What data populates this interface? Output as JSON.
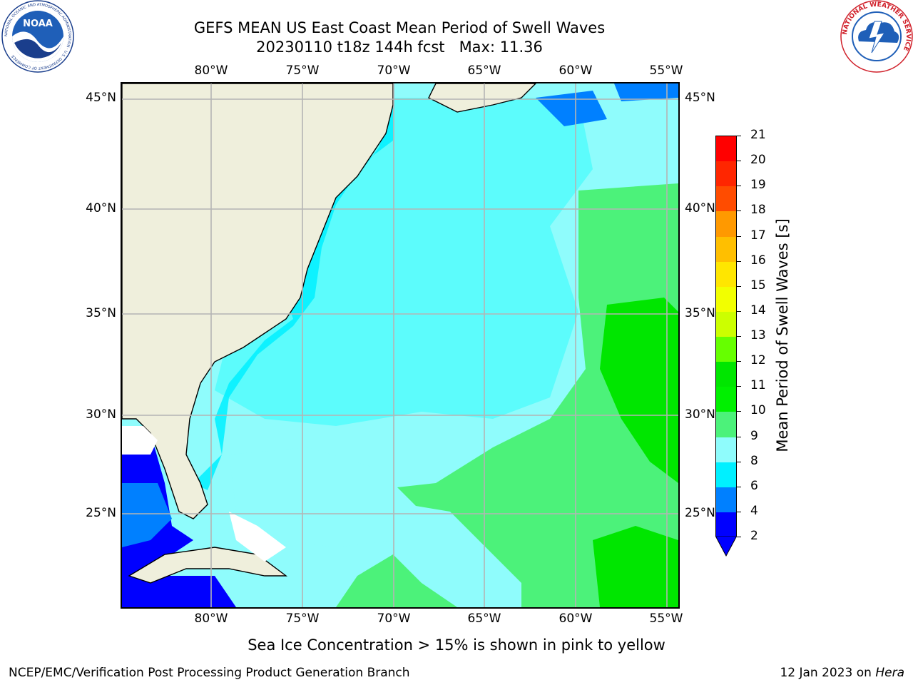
{
  "title": {
    "line1": "GEFS MEAN US East Coast Mean Period of Swell Waves",
    "line2": "20230110 t18z 144h fcst   Max: 11.36"
  },
  "map": {
    "lon_labels": [
      "80°W",
      "75°W",
      "70°W",
      "65°W",
      "60°W",
      "55°W"
    ],
    "lat_labels": [
      "45°N",
      "40°N",
      "35°N",
      "30°N",
      "25°N"
    ],
    "colors": {
      "land": "#efefdc",
      "coast": "#000000",
      "grid": "#b4b4b4",
      "missing": "#ffffff"
    }
  },
  "colorbar": {
    "label": "Mean Period of Swell Waves [s]",
    "ticks": [
      "21",
      "20",
      "19",
      "18",
      "17",
      "16",
      "15",
      "14",
      "13",
      "12",
      "11",
      "10",
      "9",
      "8",
      "6",
      "4",
      "2"
    ],
    "colors": [
      "#ff0000",
      "#ff2600",
      "#ff4c00",
      "#ff7200",
      "#ff9900",
      "#ffbf00",
      "#ffe600",
      "#f2ff00",
      "#ccff00",
      "#a6ff00",
      "#66ff00",
      "#00e600",
      "#00f000",
      "#4cf27a",
      "#8ffcfc",
      "#5cfcfc",
      "#00f0ff",
      "#0080ff",
      "#0000ff"
    ]
  },
  "footnote": "Sea Ice Concentration > 15% is shown in pink to yellow",
  "footer": {
    "left": "NCEP/EMC/Verification Post Processing Product Generation Branch",
    "right_date": "12 Jan 2023 on",
    "right_host": "Hera"
  },
  "logos": {
    "noaa_text": "NOAA",
    "noaa_ring": "NATIONAL OCEANIC AND ATMOSPHERIC ADMINISTRATION · U.S. DEPARTMENT OF COMMERCE",
    "nws_ring": "NATIONAL WEATHER SERVICE"
  }
}
